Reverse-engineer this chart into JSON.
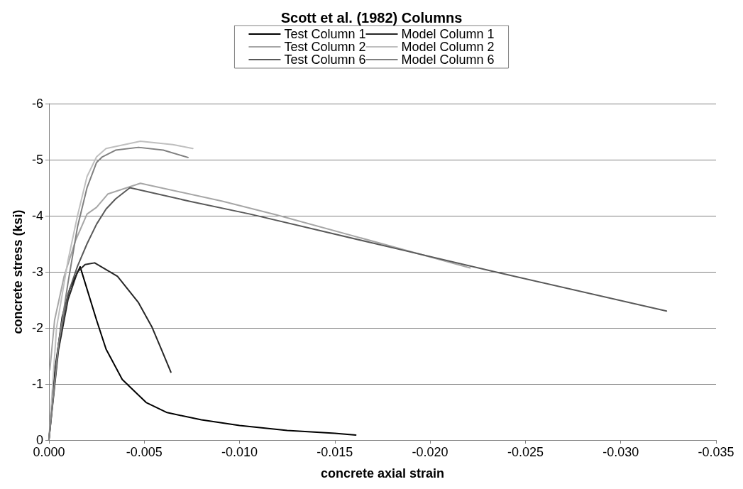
{
  "chart_data": {
    "type": "line",
    "title": "Scott et al. (1982) Columns",
    "xlabel": "concrete axial strain",
    "ylabel": "concrete stress (ksi)",
    "xlim": [
      0,
      -0.035
    ],
    "xticks": [
      {
        "value": 0,
        "label": "0.000"
      },
      -0.005,
      {
        "value": -0.01,
        "label": "-0.010"
      },
      -0.015,
      {
        "value": -0.02,
        "label": "-0.020"
      },
      -0.025,
      {
        "value": -0.03,
        "label": "-0.030"
      },
      -0.035
    ],
    "ylim": [
      0,
      -6
    ],
    "yticks": [
      0,
      -1,
      -2,
      -3,
      -4,
      -5,
      -6
    ],
    "grid": "y",
    "legend": "top",
    "marker": "none",
    "line_style": "solid",
    "series": [
      {
        "name": "Test Column 1",
        "color": "#000000",
        "x": [
          0,
          -0.0003,
          -0.0007,
          -0.0011,
          -0.00164,
          -0.0025,
          -0.003,
          -0.00385,
          -0.0051,
          -0.0062,
          -0.008,
          -0.01,
          -0.0125,
          -0.015,
          -0.0161
        ],
        "values": [
          0,
          -1.2,
          -2.2,
          -2.7,
          -3.09,
          -2.14,
          -1.62,
          -1.08,
          -0.67,
          -0.49,
          -0.36,
          -0.26,
          -0.17,
          -0.12,
          -0.09
        ]
      },
      {
        "name": "Model Column 1",
        "color": "#262626",
        "x": [
          0,
          -0.0005,
          -0.001,
          -0.0015,
          -0.0019,
          -0.0024,
          -0.0036,
          -0.0047,
          -0.0054,
          -0.0059,
          -0.0064
        ],
        "values": [
          0,
          -1.6,
          -2.5,
          -3.0,
          -3.13,
          -3.16,
          -2.92,
          -2.45,
          -2.02,
          -1.62,
          -1.21
        ]
      },
      {
        "name": "Test Column 2",
        "color": "#a6a6a6",
        "x": [
          -5e-05,
          -0.0003,
          -0.0008,
          -0.0014,
          -0.002,
          -0.0025,
          -0.0031,
          -0.0048,
          -0.0091,
          -0.0119,
          -0.0221
        ],
        "values": [
          -1.25,
          -2.14,
          -2.92,
          -3.56,
          -4.03,
          -4.15,
          -4.39,
          -4.58,
          -4.26,
          -4.02,
          -3.07
        ]
      },
      {
        "name": "Model Column 2",
        "color": "#bfbfbf",
        "x": [
          0,
          -0.0004,
          -0.001,
          -0.0015,
          -0.002,
          -0.0025,
          -0.003,
          -0.0048,
          -0.0065,
          -0.00755
        ],
        "values": [
          0,
          -2.0,
          -3.2,
          -4.0,
          -4.7,
          -5.05,
          -5.2,
          -5.33,
          -5.27,
          -5.2
        ]
      },
      {
        "name": "Test Column 6",
        "color": "#595959",
        "x": [
          0,
          -0.0005,
          -0.001,
          -0.0015,
          -0.002,
          -0.0025,
          -0.003,
          -0.0035,
          -0.00425,
          -0.00736,
          -0.01055,
          -0.0184,
          -0.0234,
          -0.0324
        ],
        "values": [
          0,
          -1.7,
          -2.6,
          -3.1,
          -3.5,
          -3.85,
          -4.12,
          -4.3,
          -4.5,
          -4.26,
          -4.03,
          -3.4,
          -3.0,
          -2.3
        ]
      },
      {
        "name": "Model Column 6",
        "color": "#808080",
        "x": [
          0,
          -0.0005,
          -0.001,
          -0.0015,
          -0.002,
          -0.0025,
          -0.0028,
          -0.0035,
          -0.0047,
          -0.006,
          -0.0073
        ],
        "values": [
          0,
          -1.7,
          -2.8,
          -3.8,
          -4.5,
          -4.95,
          -5.05,
          -5.17,
          -5.22,
          -5.17,
          -5.04
        ]
      }
    ]
  }
}
